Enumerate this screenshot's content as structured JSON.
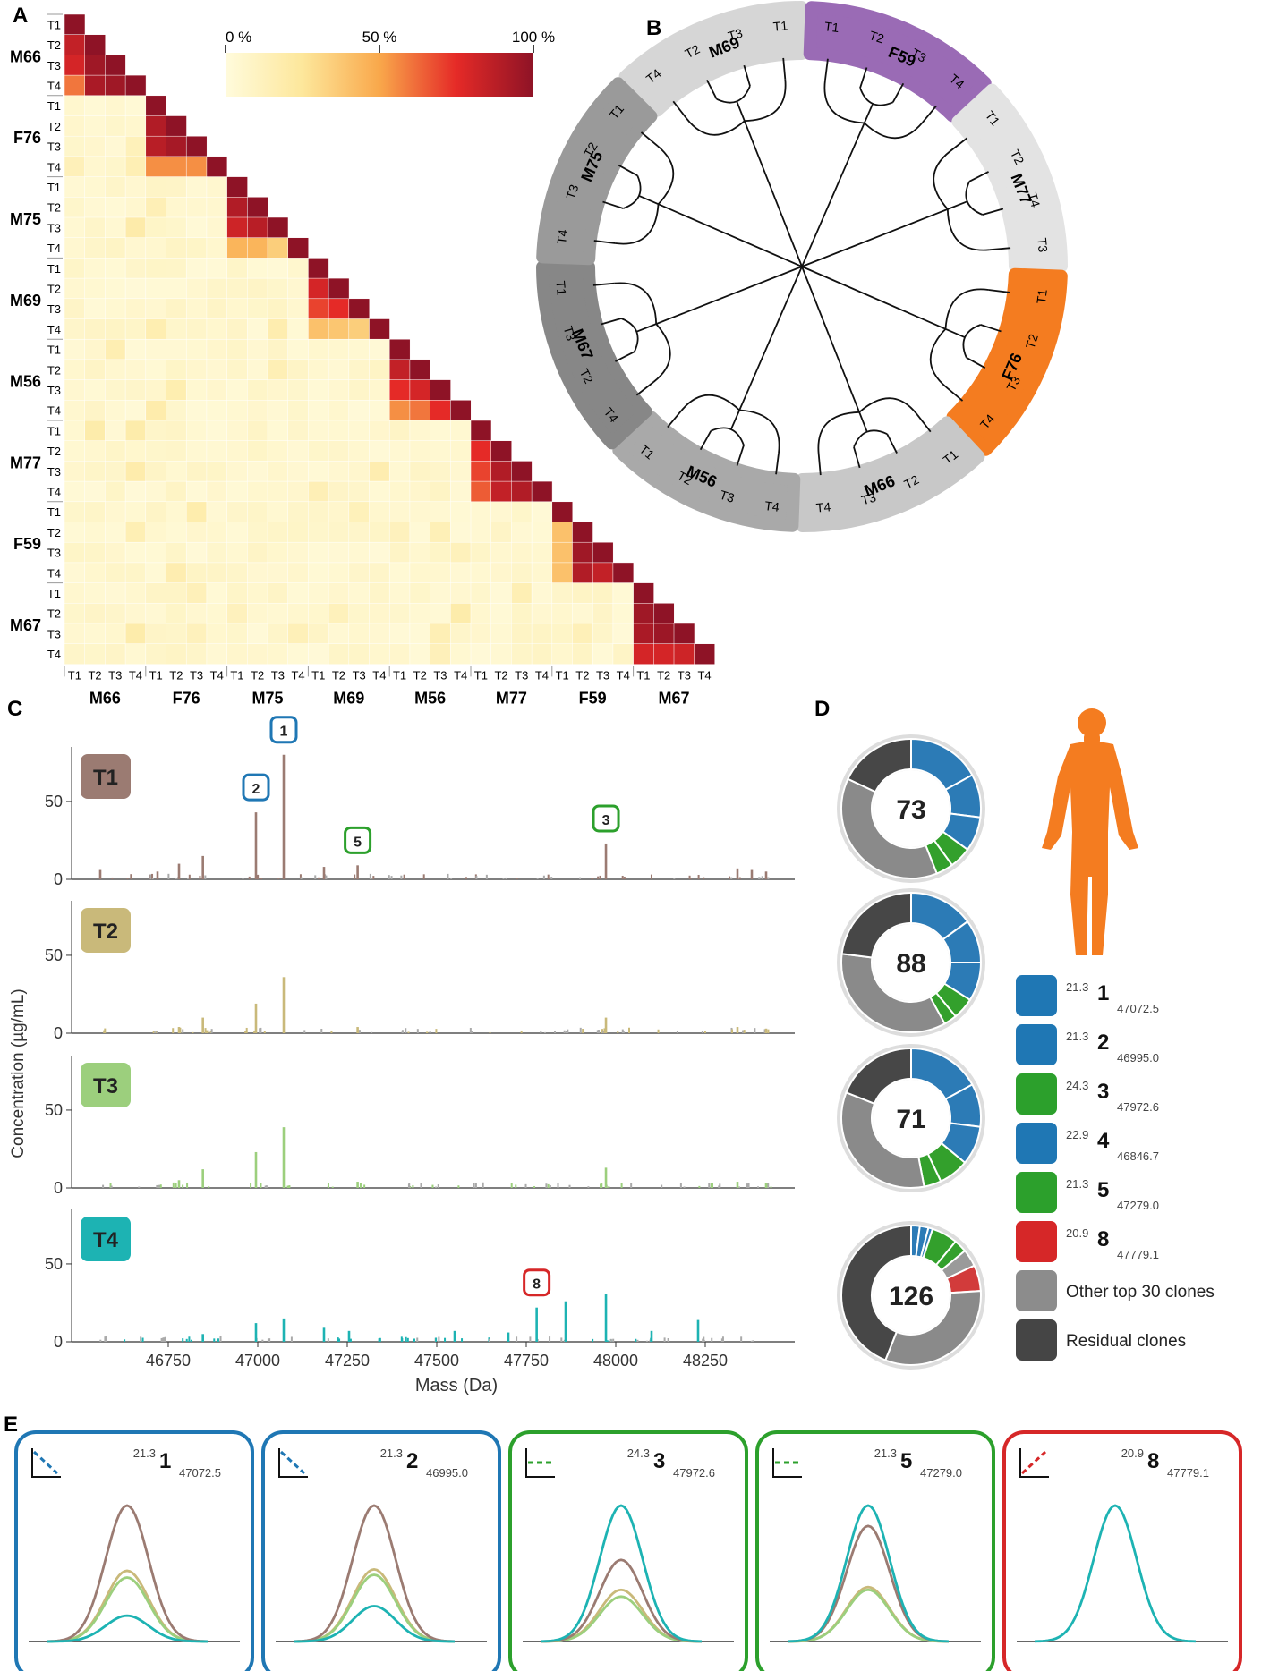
{
  "panel_labels": {
    "a": "A",
    "b": "B",
    "c": "C",
    "d": "D",
    "e": "E"
  },
  "time_points": [
    "T1",
    "T2",
    "T3",
    "T4"
  ],
  "subjects": [
    "M66",
    "F76",
    "M75",
    "M69",
    "M56",
    "M77",
    "F59",
    "M67"
  ],
  "colorbar": {
    "min_label": "0 %",
    "mid_label": "50 %",
    "max_label": "100 %"
  },
  "dendrogram_groups": [
    {
      "label": "M69",
      "tips": [
        "T4",
        "T2",
        "T3",
        "T1"
      ],
      "color": "#d6d6d6"
    },
    {
      "label": "F59",
      "tips": [
        "T1",
        "T2",
        "T3",
        "T4"
      ],
      "color": "#9a6bb5"
    },
    {
      "label": "M77",
      "tips": [
        "T1",
        "T2",
        "T4",
        "T3"
      ],
      "color": "#e3e3e3"
    },
    {
      "label": "F76",
      "tips": [
        "T1",
        "T2",
        "T3",
        "T4"
      ],
      "color": "#f47c20"
    },
    {
      "label": "M66",
      "tips": [
        "T1",
        "T2",
        "T3",
        "T4"
      ],
      "color": "#c8c8c8"
    },
    {
      "label": "M56",
      "tips": [
        "T4",
        "T3",
        "T2",
        "T1"
      ],
      "color": "#a9a9a9"
    },
    {
      "label": "M67",
      "tips": [
        "T4",
        "T2",
        "T3",
        "T1"
      ],
      "color": "#878787"
    },
    {
      "label": "M75",
      "tips": [
        "T4",
        "T3",
        "T2",
        "T1"
      ],
      "color": "#9a9a9a"
    }
  ],
  "spectra": {
    "ylabel": "Concentration (µg/mL)",
    "xlabel": "Mass (Da)",
    "x_ticks": [
      "46750",
      "47000",
      "47250",
      "47500",
      "47750",
      "48000",
      "48250"
    ],
    "y_ticks": [
      "0",
      "50"
    ],
    "panels": [
      {
        "label": "T1",
        "color": "#9b7b72"
      },
      {
        "label": "T2",
        "color": "#c9b97a"
      },
      {
        "label": "T3",
        "color": "#9ccf7d"
      },
      {
        "label": "T4",
        "color": "#1db3b3"
      }
    ],
    "markers": [
      {
        "id": "1",
        "color": "#1f77b4"
      },
      {
        "id": "2",
        "color": "#1f77b4"
      },
      {
        "id": "5",
        "color": "#2ca02c"
      },
      {
        "id": "3",
        "color": "#2ca02c"
      },
      {
        "id": "8",
        "color": "#d62728"
      }
    ]
  },
  "donuts": [
    {
      "total": "73"
    },
    {
      "total": "88"
    },
    {
      "total": "71"
    },
    {
      "total": "126"
    }
  ],
  "legend": [
    {
      "rt": "21.3",
      "id": "1",
      "mass": "47072.5",
      "color": "#1f77b4"
    },
    {
      "rt": "21.3",
      "id": "2",
      "mass": "46995.0",
      "color": "#1f77b4"
    },
    {
      "rt": "24.3",
      "id": "3",
      "mass": "47972.6",
      "color": "#2ca02c"
    },
    {
      "rt": "22.9",
      "id": "4",
      "mass": "46846.7",
      "color": "#1f77b4"
    },
    {
      "rt": "21.3",
      "id": "5",
      "mass": "47279.0",
      "color": "#2ca02c"
    },
    {
      "rt": "20.9",
      "id": "8",
      "mass": "47779.1",
      "color": "#d62728"
    },
    {
      "label": "Other top 30 clones",
      "color": "#8c8c8c"
    },
    {
      "label": "Residual clones",
      "color": "#454545"
    }
  ],
  "clone_panels": [
    {
      "rt": "21.3",
      "id": "1",
      "mass": "47072.5",
      "color": "#1f77b4",
      "trend": "down"
    },
    {
      "rt": "21.3",
      "id": "2",
      "mass": "46995.0",
      "color": "#1f77b4",
      "trend": "down"
    },
    {
      "rt": "24.3",
      "id": "3",
      "mass": "47972.6",
      "color": "#2ca02c",
      "trend": "flat"
    },
    {
      "rt": "21.3",
      "id": "5",
      "mass": "47279.0",
      "color": "#2ca02c",
      "trend": "flat"
    },
    {
      "rt": "20.9",
      "id": "8",
      "mass": "47779.1",
      "color": "#d62728",
      "trend": "up"
    }
  ],
  "chart_data": [
    {
      "type": "heatmap",
      "title": "",
      "description_scale": "pairwise clonal overlap (%)",
      "rows": [
        "M66",
        "F76",
        "M75",
        "M69",
        "M56",
        "M77",
        "F59",
        "M67"
      ],
      "cols": [
        "M66",
        "F76",
        "M75",
        "M69",
        "M56",
        "M77",
        "F59",
        "M67"
      ],
      "within_subject_overlap": {
        "M66": [
          [
            100
          ],
          [
            85,
            100
          ],
          [
            80,
            95,
            100
          ],
          [
            60,
            92,
            95,
            100
          ]
        ],
        "F76": [
          [
            100
          ],
          [
            90,
            100
          ],
          [
            88,
            93,
            100
          ],
          [
            55,
            55,
            55,
            100
          ]
        ],
        "M75": [
          [
            100
          ],
          [
            90,
            100
          ],
          [
            82,
            88,
            100
          ],
          [
            45,
            45,
            35,
            100
          ]
        ],
        "M69": [
          [
            100
          ],
          [
            80,
            100
          ],
          [
            70,
            75,
            100
          ],
          [
            40,
            38,
            35,
            100
          ]
        ],
        "M56": [
          [
            100
          ],
          [
            85,
            100
          ],
          [
            75,
            80,
            100
          ],
          [
            55,
            60,
            75,
            100
          ]
        ],
        "M77": [
          [
            100
          ],
          [
            75,
            100
          ],
          [
            70,
            90,
            100
          ],
          [
            65,
            85,
            90,
            100
          ]
        ],
        "F59": [
          [
            100
          ],
          [
            40,
            100
          ],
          [
            40,
            95,
            100
          ],
          [
            40,
            90,
            85,
            100
          ]
        ],
        "M67": [
          [
            100
          ],
          [
            95,
            100
          ],
          [
            92,
            96,
            100
          ],
          [
            80,
            80,
            82,
            100
          ]
        ]
      },
      "between_subject_overlap": "approximately 0-15 %",
      "color_scale": [
        0,
        100
      ]
    },
    {
      "type": "line",
      "title": "",
      "xlabel": "Mass (Da)",
      "ylabel": "Concentration (µg/mL)",
      "xlim": [
        46500,
        48500
      ],
      "ylim": [
        0,
        85
      ],
      "series": [
        {
          "name": "T1",
          "peaks": [
            [
              46995.0,
              43
            ],
            [
              47072.5,
              80
            ],
            [
              47279.0,
              9
            ],
            [
              47972.6,
              23
            ],
            [
              46846.7,
              15
            ],
            [
              46780,
              10
            ],
            [
              46720,
              5
            ],
            [
              46560,
              6
            ],
            [
              47185,
              8
            ],
            [
              48340,
              7
            ],
            [
              48380,
              6
            ],
            [
              48420,
              5
            ]
          ]
        },
        {
          "name": "T2",
          "peaks": [
            [
              46995.0,
              19
            ],
            [
              47072.5,
              36
            ],
            [
              47279.0,
              4
            ],
            [
              47972.6,
              10
            ],
            [
              46846.7,
              10
            ],
            [
              46780,
              4
            ],
            [
              48340,
              4
            ],
            [
              48420,
              3
            ]
          ]
        },
        {
          "name": "T3",
          "peaks": [
            [
              46995.0,
              23
            ],
            [
              47072.5,
              39
            ],
            [
              47279.0,
              4
            ],
            [
              47972.6,
              13
            ],
            [
              46846.7,
              12
            ],
            [
              46780,
              5
            ],
            [
              48340,
              4
            ],
            [
              48420,
              3
            ]
          ]
        },
        {
          "name": "T4",
          "peaks": [
            [
              47779.1,
              22
            ],
            [
              47972.6,
              31
            ],
            [
              47860,
              26
            ],
            [
              48230,
              14
            ],
            [
              47072.5,
              15
            ],
            [
              46995.0,
              12
            ],
            [
              47185,
              9
            ],
            [
              47255,
              7
            ],
            [
              47550,
              7
            ],
            [
              48100,
              7
            ],
            [
              47700,
              6
            ],
            [
              46846.7,
              5
            ]
          ]
        }
      ]
    },
    {
      "type": "pie",
      "title": "",
      "donuts": [
        {
          "total": 73,
          "slices": [
            {
              "label": "1",
              "value": 0.17
            },
            {
              "label": "2",
              "value": 0.1
            },
            {
              "label": "4",
              "value": 0.08
            },
            {
              "label": "3",
              "value": 0.05
            },
            {
              "label": "5",
              "value": 0.04
            },
            {
              "label": "8",
              "value": 0.0
            },
            {
              "label": "Other top 30 clones",
              "value": 0.38
            },
            {
              "label": "Residual clones",
              "value": 0.18
            }
          ]
        },
        {
          "total": 88,
          "slices": [
            {
              "label": "1",
              "value": 0.15
            },
            {
              "label": "2",
              "value": 0.1
            },
            {
              "label": "4",
              "value": 0.09
            },
            {
              "label": "3",
              "value": 0.05
            },
            {
              "label": "5",
              "value": 0.03
            },
            {
              "label": "8",
              "value": 0.0
            },
            {
              "label": "Other top 30 clones",
              "value": 0.35
            },
            {
              "label": "Residual clones",
              "value": 0.23
            }
          ]
        },
        {
          "total": 71,
          "slices": [
            {
              "label": "1",
              "value": 0.17
            },
            {
              "label": "2",
              "value": 0.1
            },
            {
              "label": "4",
              "value": 0.09
            },
            {
              "label": "3",
              "value": 0.07
            },
            {
              "label": "5",
              "value": 0.04
            },
            {
              "label": "8",
              "value": 0.0
            },
            {
              "label": "Other top 30 clones",
              "value": 0.34
            },
            {
              "label": "Residual clones",
              "value": 0.19
            }
          ]
        },
        {
          "total": 126,
          "slices": [
            {
              "label": "1",
              "value": 0.02
            },
            {
              "label": "2",
              "value": 0.02
            },
            {
              "label": "4",
              "value": 0.01
            },
            {
              "label": "3",
              "value": 0.06
            },
            {
              "label": "5",
              "value": 0.03
            },
            {
              "label": "Other top 30 clones A",
              "value": 0.04
            },
            {
              "label": "8",
              "value": 0.06
            },
            {
              "label": "Other top 30 clones",
              "value": 0.32
            },
            {
              "label": "Residual clones",
              "value": 0.44
            }
          ]
        }
      ]
    },
    {
      "type": "line",
      "title": "",
      "description": "Gaussian peak profiles per clone at each time point",
      "clones": [
        {
          "id": "1",
          "heights": {
            "T1": 100,
            "T2": 52,
            "T3": 47,
            "T4": 19
          }
        },
        {
          "id": "2",
          "heights": {
            "T1": 100,
            "T2": 53,
            "T3": 49,
            "T4": 26
          }
        },
        {
          "id": "3",
          "heights": {
            "T1": 60,
            "T2": 38,
            "T3": 33,
            "T4": 100
          }
        },
        {
          "id": "5",
          "heights": {
            "T1": 85,
            "T2": 40,
            "T3": 38,
            "T4": 100
          }
        },
        {
          "id": "8",
          "heights": {
            "T1": 0,
            "T2": 0,
            "T3": 0,
            "T4": 100
          }
        }
      ]
    }
  ]
}
